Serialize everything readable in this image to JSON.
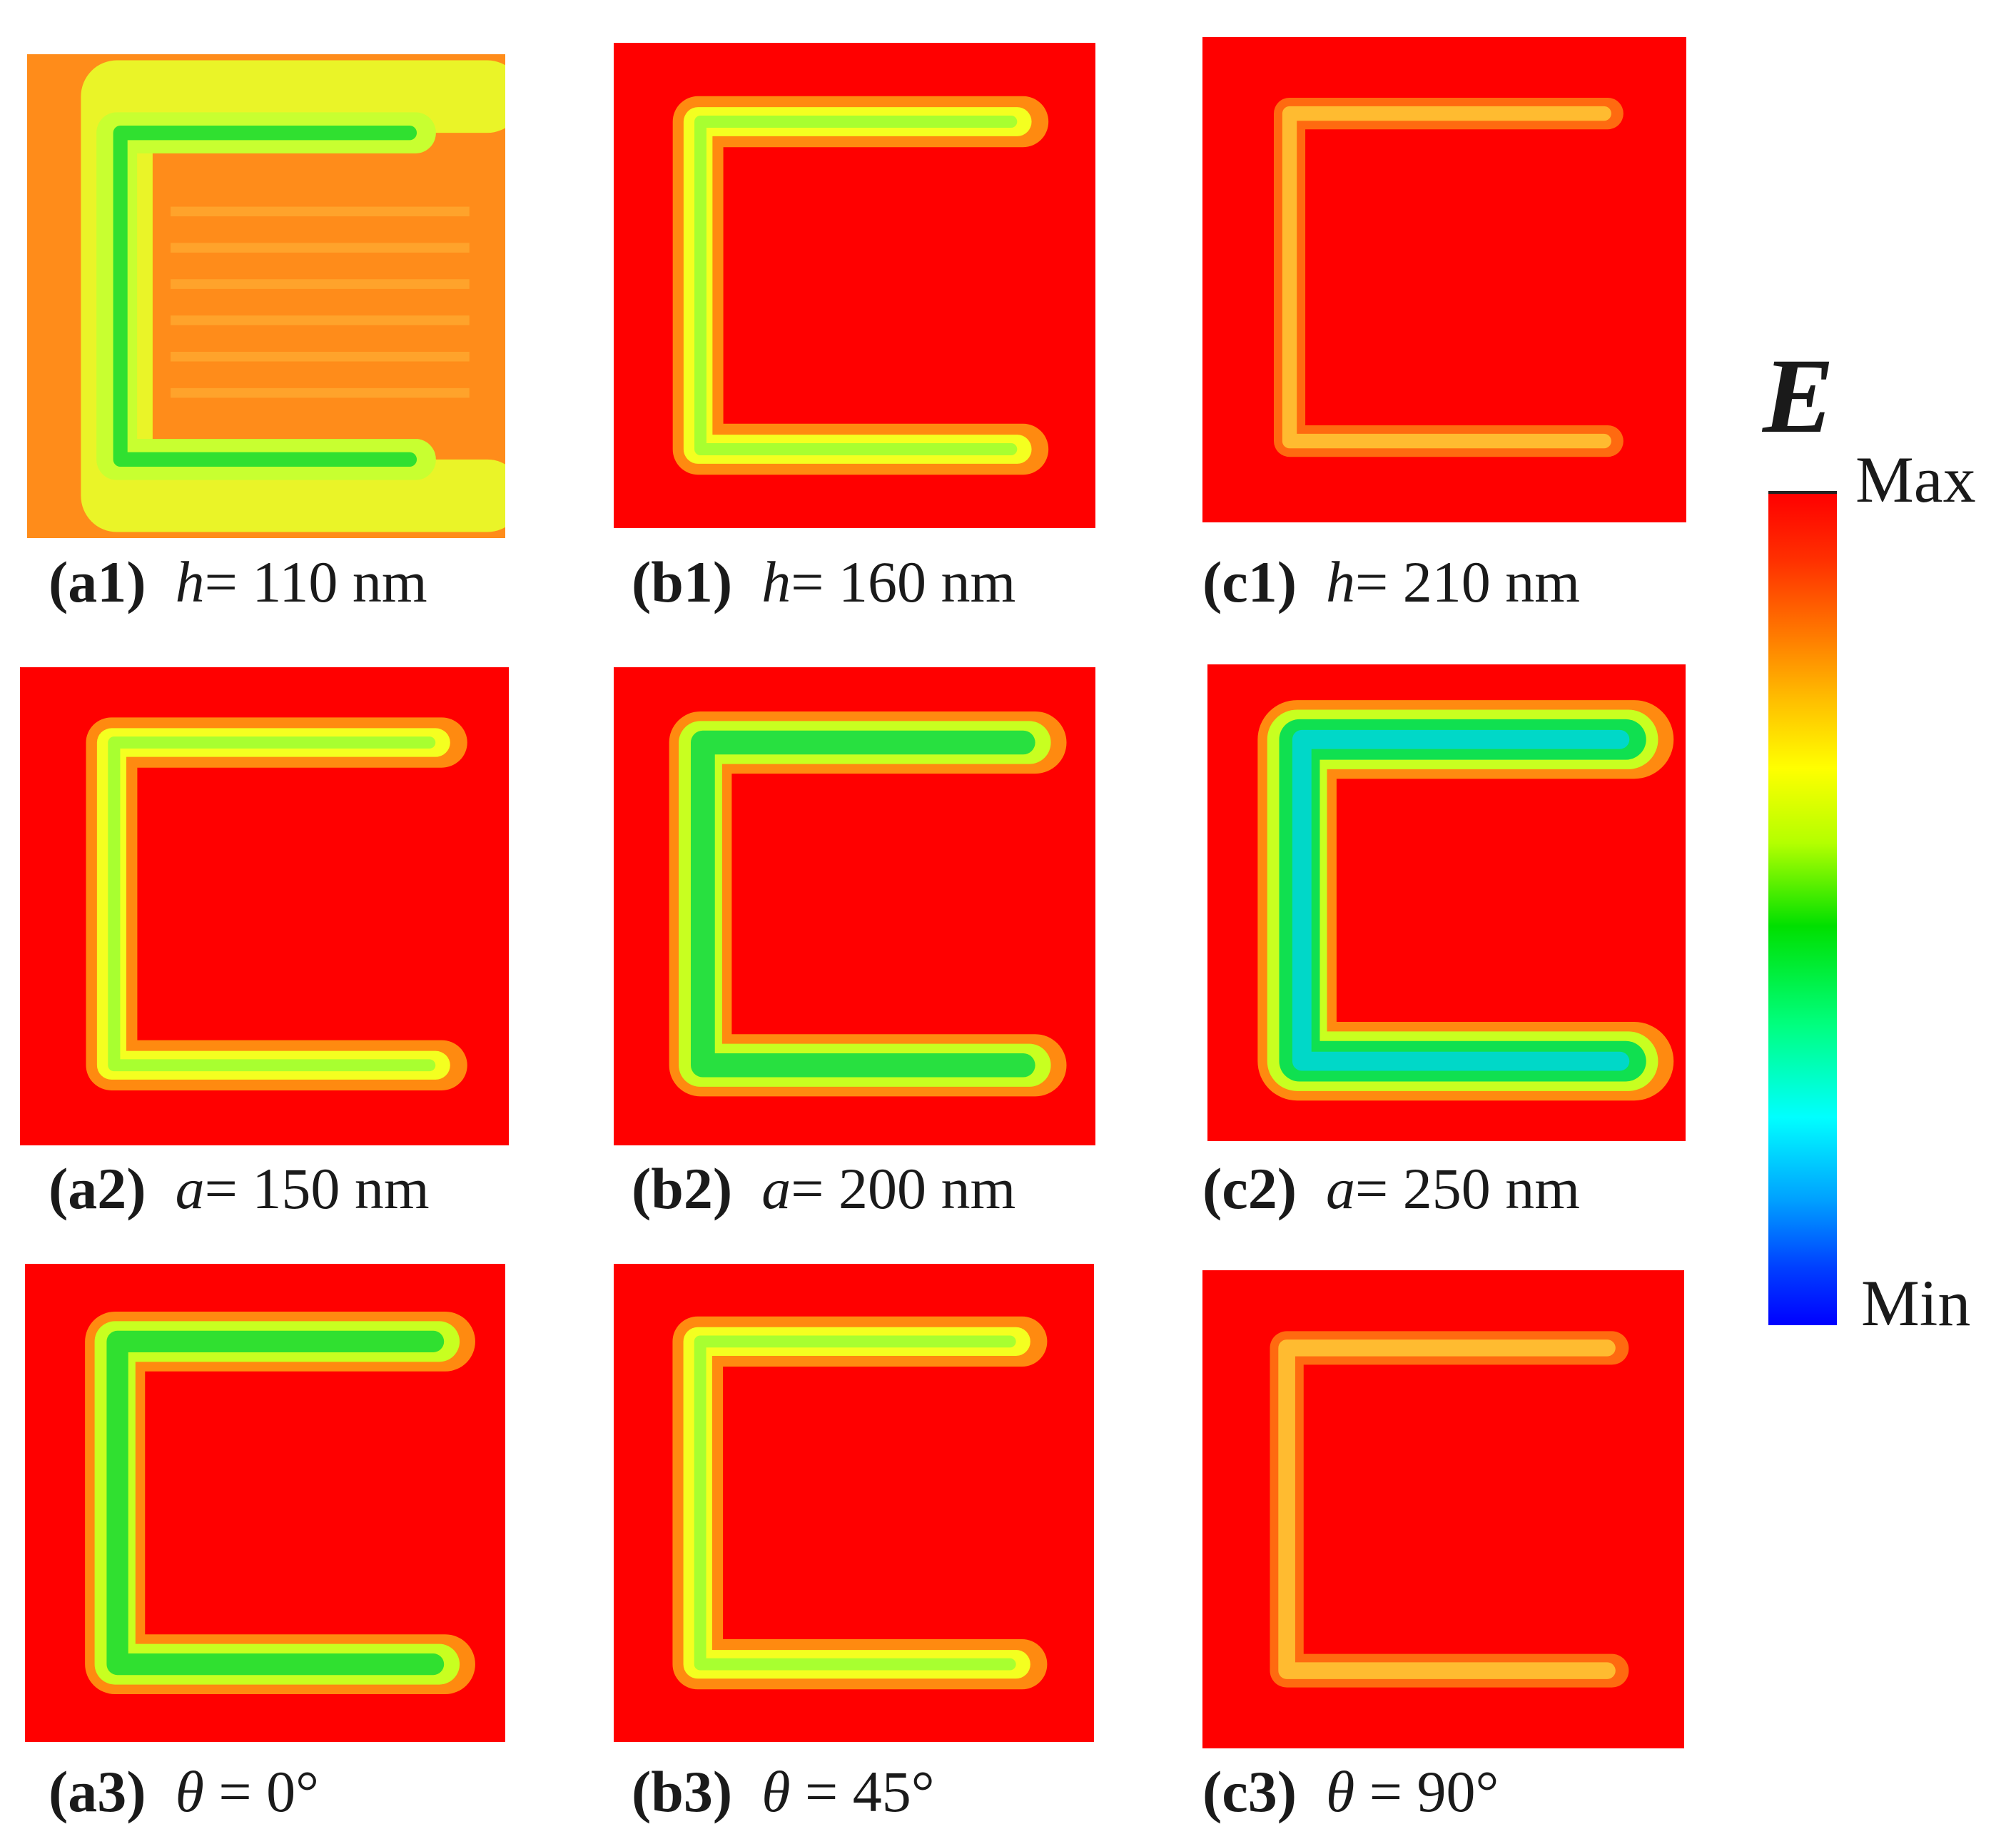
{
  "panels": [
    {
      "tag": "(a1)",
      "sym": "h",
      "rest": "= 110 nm",
      "variant": "orange"
    },
    {
      "tag": "(b1)",
      "sym": "h",
      "rest": "= 160 nm",
      "variant": "yellow-green"
    },
    {
      "tag": "(c1)",
      "sym": "h",
      "rest": "= 210 nm",
      "variant": "faint"
    },
    {
      "tag": "(a2)",
      "sym": "a",
      "rest": "= 150 nm",
      "variant": "yellow"
    },
    {
      "tag": "(b2)",
      "sym": "a",
      "rest": "= 200 nm",
      "variant": "green"
    },
    {
      "tag": "(c2)",
      "sym": "a",
      "rest": "= 250 nm",
      "variant": "cyan"
    },
    {
      "tag": "(a3)",
      "sym": "θ",
      "rest": " = 0°",
      "variant": "green"
    },
    {
      "tag": "(b3)",
      "sym": "θ",
      "rest": " = 45°",
      "variant": "yellow"
    },
    {
      "tag": "(c3)",
      "sym": "θ",
      "rest": " = 90°",
      "variant": "faint"
    }
  ],
  "colorbar": {
    "title": "E",
    "max_label": "Max",
    "min_label": "Min",
    "colors": [
      "#ff0000",
      "#ffff00",
      "#00e000",
      "#00ffff",
      "#0000ff"
    ]
  }
}
